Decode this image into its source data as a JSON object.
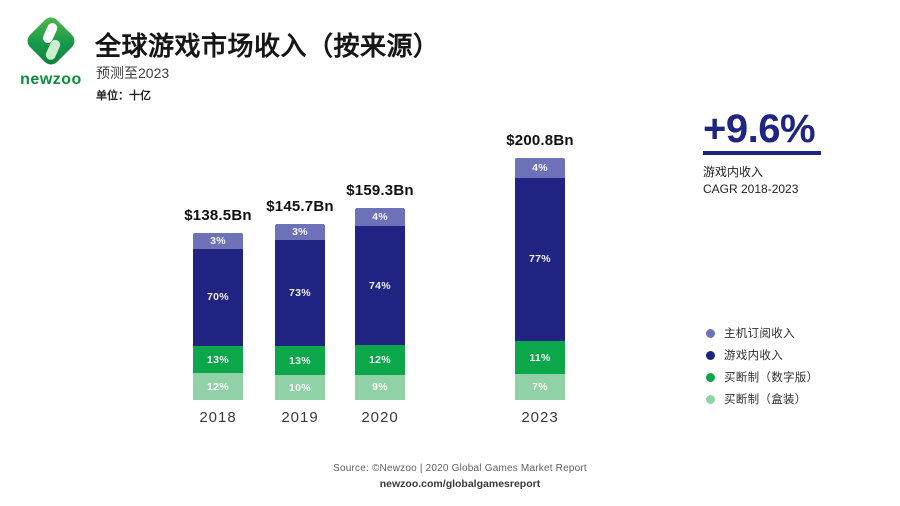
{
  "header": {
    "logo_text": "newzoo",
    "title": "全球游戏市场收入（按来源）",
    "subtitle": "预测至2023",
    "unit_label": "单位：十亿"
  },
  "chart_data": {
    "type": "bar",
    "stacked": true,
    "title": "全球游戏市场收入（按来源）",
    "subtitle": "预测至2023",
    "unit": "十亿",
    "legend_position": "right",
    "grid": false,
    "categories": [
      "2018",
      "2019",
      "2020",
      "2023"
    ],
    "totals_bn": [
      138.5,
      145.7,
      159.3,
      200.8
    ],
    "total_labels": [
      "$138.5Bn",
      "$145.7Bn",
      "$159.3Bn",
      "$200.8Bn"
    ],
    "series": [
      {
        "key": "console-subscription",
        "name": "主机订阅收入",
        "color": "#6c71b8",
        "values_pct": [
          3,
          3,
          4,
          4
        ]
      },
      {
        "key": "in-game",
        "name": "游戏内收入",
        "color": "#202381",
        "values_pct": [
          70,
          73,
          74,
          77
        ]
      },
      {
        "key": "buy-to-play-digital",
        "name": "买断制（数字版）",
        "color": "#0ca64b",
        "values_pct": [
          13,
          13,
          12,
          11
        ]
      },
      {
        "key": "buy-to-play-boxed",
        "name": "买断制（盒装）",
        "color": "#90d2a6",
        "values_pct": [
          12,
          10,
          9,
          7
        ]
      }
    ]
  },
  "highlight": {
    "value": "+9.6%",
    "caption_line1": "游戏内收入",
    "caption_line2": "CAGR 2018-2023",
    "color": "#1f2583"
  },
  "footer": {
    "source": "Source: ©Newzoo | 2020 Global Games Market Report",
    "url": "newzoo.com/globalgamesreport"
  }
}
